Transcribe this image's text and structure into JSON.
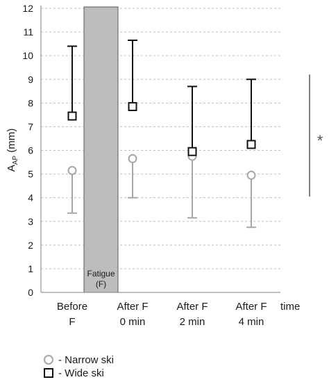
{
  "chart_data": {
    "type": "scatter",
    "categories": [
      "Before\nF",
      "After F\n0 min",
      "After F\n2 min",
      "After F\n4 min"
    ],
    "xlabel": "time",
    "ylabel": "A",
    "ylabel_sub": "AP",
    "ylabel_unit": " (mm)",
    "ylim": [
      0,
      12
    ],
    "yticks": [
      0,
      1,
      2,
      3,
      4,
      5,
      6,
      7,
      8,
      9,
      10,
      11,
      12
    ],
    "grid": true,
    "series": [
      {
        "name": "Narrow ski",
        "marker": "circle",
        "color": "#a6a6a6",
        "values": [
          5.15,
          5.65,
          5.75,
          4.95
        ],
        "error_low": [
          3.35,
          4.0,
          3.15,
          2.75
        ]
      },
      {
        "name": "Wide ski",
        "marker": "square",
        "color": "#111111",
        "values": [
          7.45,
          7.85,
          5.95,
          6.25
        ],
        "error_high": [
          10.4,
          10.65,
          8.7,
          9.0
        ]
      }
    ],
    "annotations": {
      "fatigue_band_label": "Fatigue\n(F)",
      "significance": "*"
    }
  },
  "legend": {
    "narrow_label": "- Narrow ski",
    "wide_label": "- Wide ski"
  }
}
